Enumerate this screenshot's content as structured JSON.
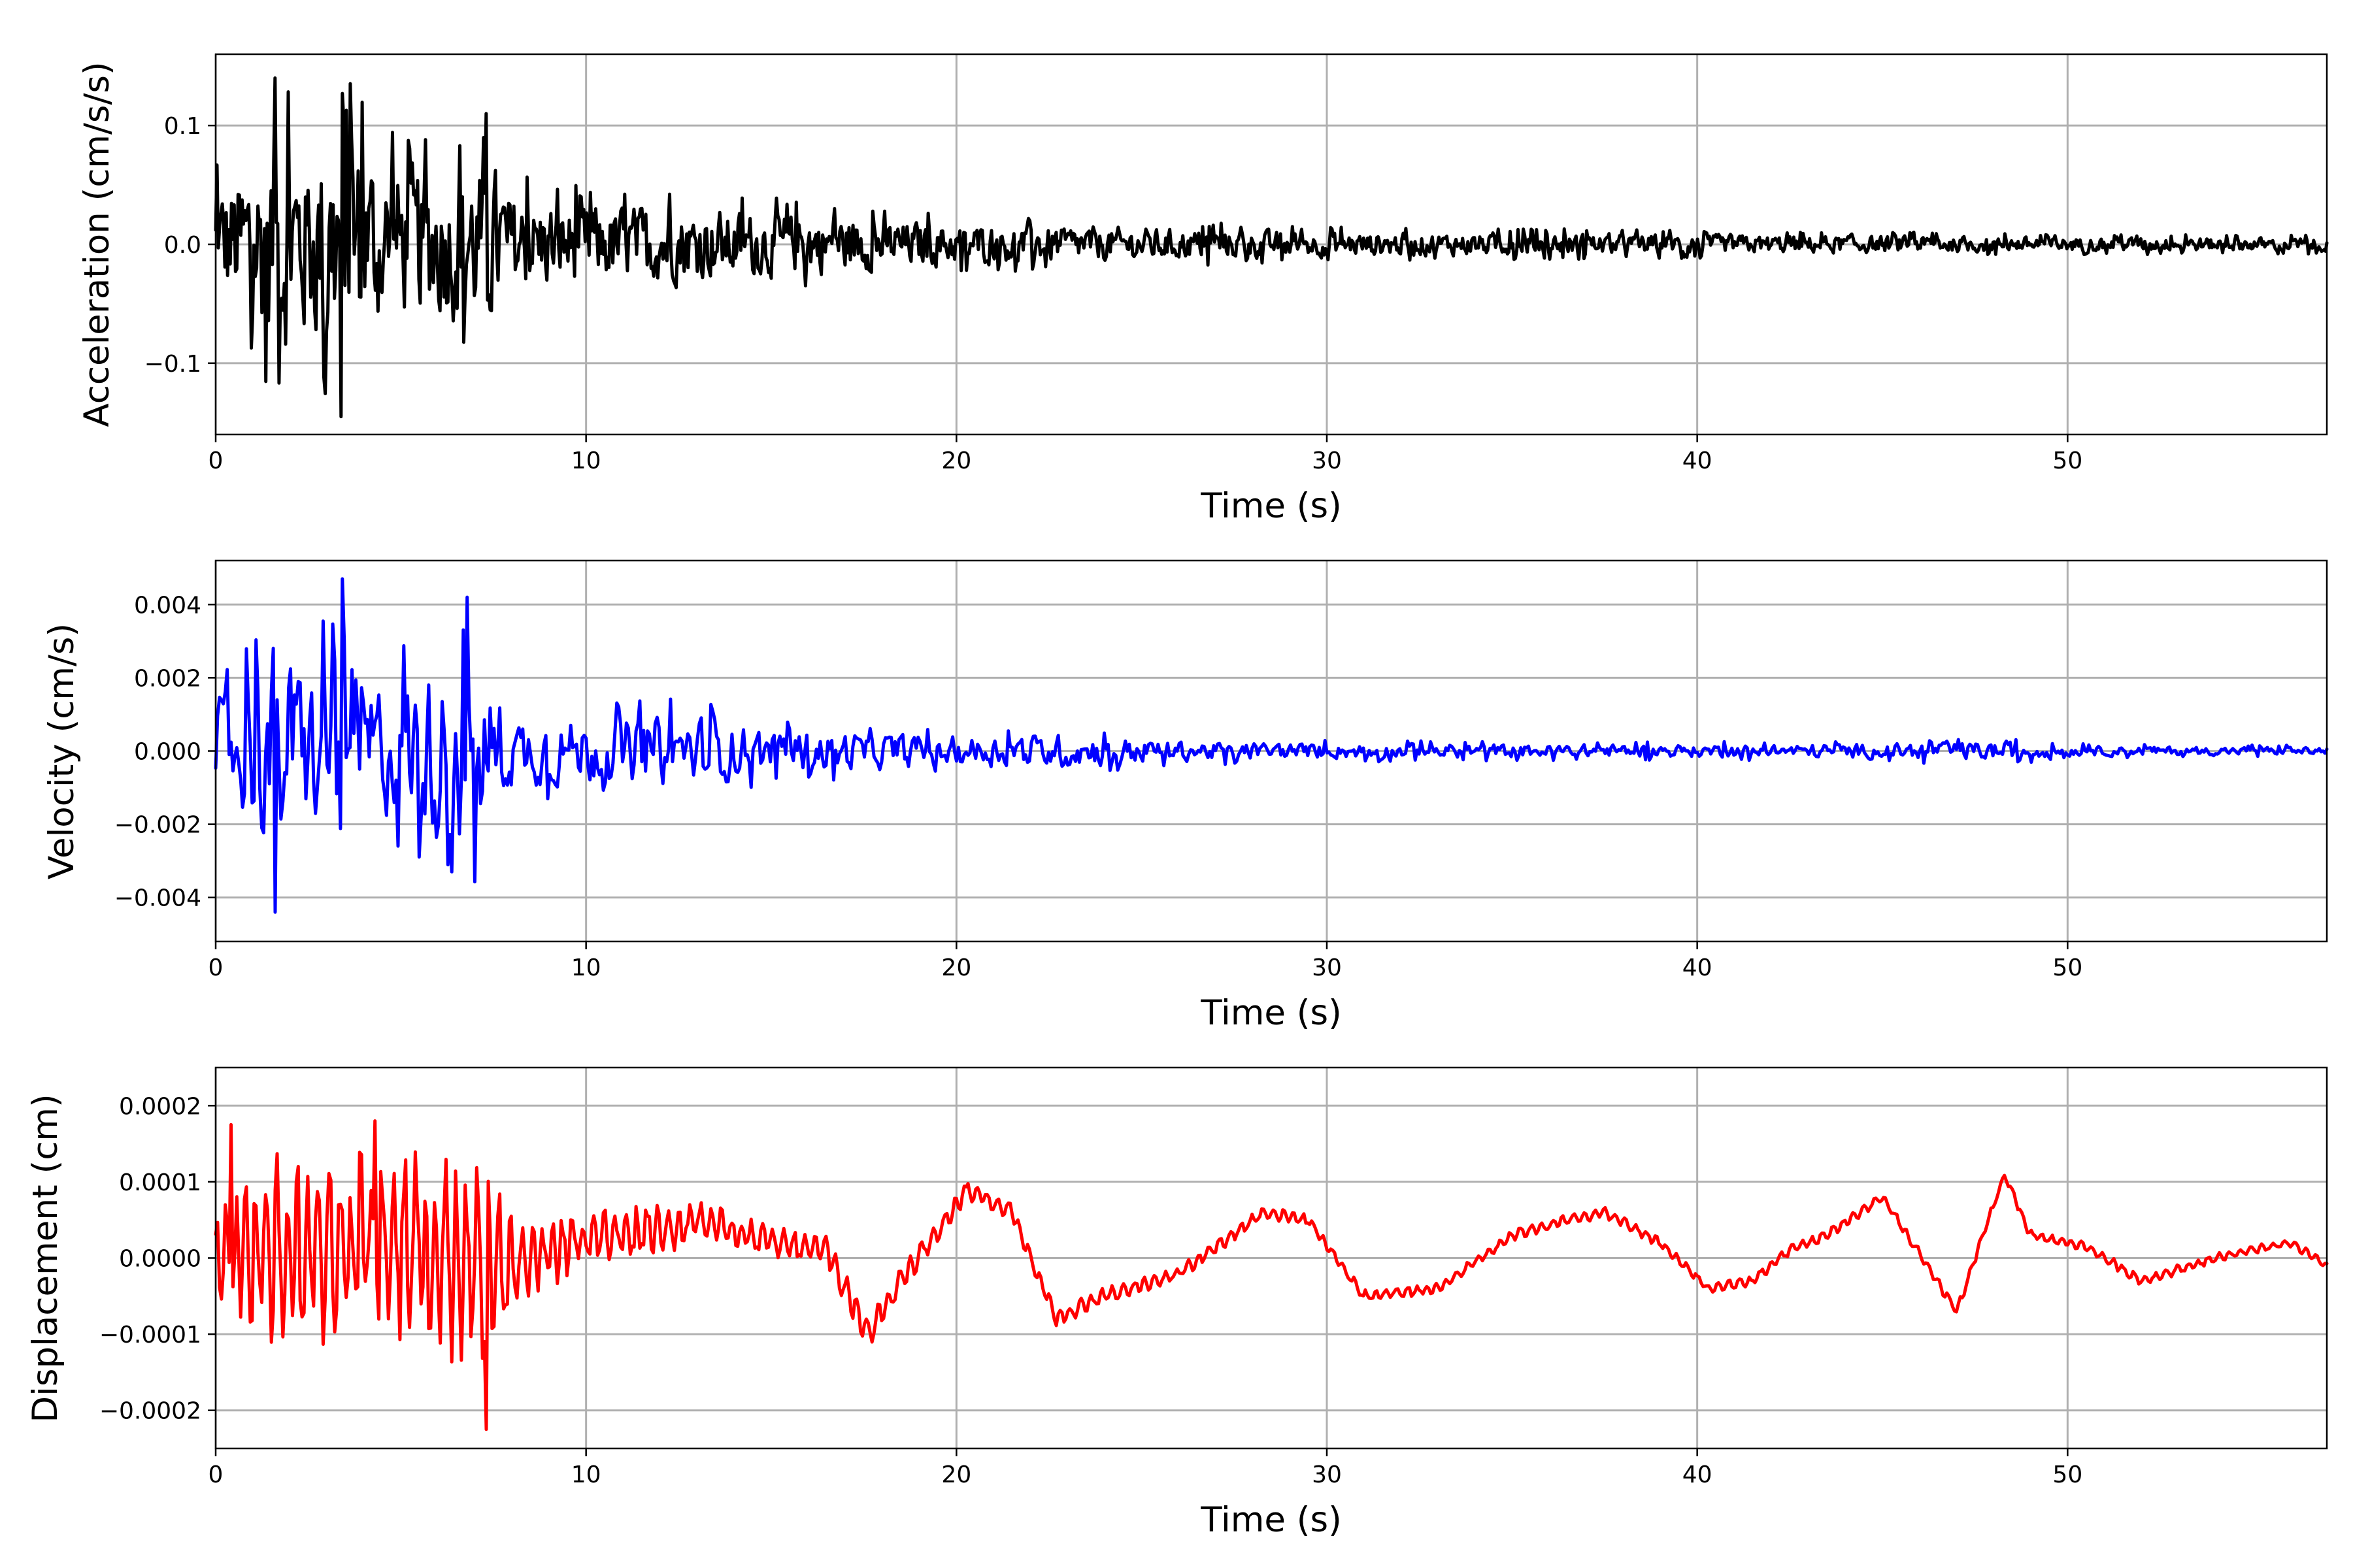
{
  "chart_data": [
    {
      "type": "line",
      "panel": "acceleration",
      "xlabel": "Time (s)",
      "ylabel": "Acceleration (cm/s/s)",
      "xlim": [
        0,
        57
      ],
      "ylim": [
        -0.16,
        0.16
      ],
      "xticks": [
        0,
        10,
        20,
        30,
        40,
        50
      ],
      "xtick_labels": [
        "0",
        "10",
        "20",
        "30",
        "40",
        "50"
      ],
      "yticks": [
        0.1,
        0.0,
        -0.1
      ],
      "ytick_labels": [
        "0.1",
        "0.0",
        "−0.1"
      ],
      "grid": true,
      "color": "#000000",
      "envelope": {
        "time_s": [
          0,
          1,
          1.6,
          2.5,
          3.4,
          4.5,
          6,
          7.3,
          8,
          10,
          13,
          17,
          20,
          25,
          30,
          40,
          50,
          57
        ],
        "amplitude": [
          0.07,
          0.11,
          0.14,
          0.12,
          0.145,
          0.1,
          0.09,
          0.11,
          0.06,
          0.05,
          0.045,
          0.035,
          0.025,
          0.02,
          0.015,
          0.012,
          0.009,
          0.008
        ]
      },
      "peaks": [
        {
          "time_s": 1.6,
          "value": 0.14
        },
        {
          "time_s": 3.4,
          "value": -0.145
        },
        {
          "time_s": 7.3,
          "value": 0.11
        }
      ],
      "trace_points": 1600
    },
    {
      "type": "line",
      "panel": "velocity",
      "xlabel": "Time (s)",
      "ylabel": "Velocity (cm/s)",
      "xlim": [
        0,
        57
      ],
      "ylim": [
        -0.0052,
        0.0052
      ],
      "xticks": [
        0,
        10,
        20,
        30,
        40,
        50
      ],
      "xtick_labels": [
        "0",
        "10",
        "20",
        "30",
        "40",
        "50"
      ],
      "yticks": [
        0.004,
        0.002,
        0.0,
        -0.002,
        -0.004
      ],
      "ytick_labels": [
        "0.004",
        "0.002",
        "0.000",
        "−0.002",
        "−0.004"
      ],
      "grid": true,
      "color": "#0000ff",
      "envelope": {
        "time_s": [
          0,
          1,
          1.6,
          2.5,
          3.4,
          4.5,
          6.4,
          6.8,
          7.3,
          8,
          10,
          12.5,
          15,
          20,
          23,
          26,
          30,
          40,
          45,
          48.3,
          50,
          57
        ],
        "amplitude": [
          0.002,
          0.003,
          0.0044,
          0.003,
          0.0047,
          0.0025,
          0.0038,
          0.0042,
          0.0032,
          0.0014,
          0.0013,
          0.0015,
          0.0009,
          0.0006,
          0.0007,
          0.0004,
          0.0003,
          0.00025,
          0.0003,
          0.0004,
          0.0002,
          0.00015
        ]
      },
      "peaks": [
        {
          "time_s": 1.6,
          "value": -0.0044
        },
        {
          "time_s": 3.4,
          "value": 0.0047
        },
        {
          "time_s": 6.8,
          "value": 0.0042
        }
      ],
      "trace_points": 1100
    },
    {
      "type": "line",
      "panel": "displacement",
      "xlabel": "Time (s)",
      "ylabel": "Displacement (cm)",
      "xlim": [
        0,
        57
      ],
      "ylim": [
        -0.00025,
        0.00025
      ],
      "xticks": [
        0,
        10,
        20,
        30,
        40,
        50
      ],
      "xtick_labels": [
        "0",
        "10",
        "20",
        "30",
        "40",
        "50"
      ],
      "yticks": [
        0.0002,
        0.0001,
        0.0,
        -0.0001,
        -0.0002
      ],
      "ytick_labels": [
        "0.0002",
        "0.0001",
        "0.0000",
        "−0.0001",
        "−0.0002"
      ],
      "grid": true,
      "color": "#ff0000",
      "baseline": {
        "time_s": [
          0,
          2,
          5,
          8,
          9.5,
          11,
          13,
          15,
          16.5,
          17.6,
          18.5,
          20.3,
          21.5,
          22.7,
          24,
          26,
          28.3,
          29.5,
          31,
          33,
          35,
          36.5,
          37.5,
          39,
          40.3,
          41.5,
          42.5,
          43.5,
          45,
          45.8,
          47,
          48.3,
          49,
          50.5,
          52,
          54,
          56,
          57
        ],
        "value": [
          0,
          1e-05,
          2e-05,
          -2e-05,
          2e-05,
          3e-05,
          5e-05,
          2e-05,
          1e-05,
          -0.0001,
          -3e-05,
          9e-05,
          6e-05,
          -8e-05,
          -5e-05,
          -2e-05,
          6e-05,
          5e-05,
          -5e-05,
          -4e-05,
          3e-05,
          5e-05,
          6e-05,
          2e-05,
          -4e-05,
          -3e-05,
          1e-05,
          3e-05,
          8e-05,
          2e-05,
          -7e-05,
          0.00011,
          3e-05,
          1.5e-05,
          -3e-05,
          0,
          2e-05,
          -1e-05
        ]
      },
      "oscillation": {
        "time_s": [
          0,
          1,
          1.6,
          3.4,
          4.3,
          6.5,
          6.8,
          7.3,
          8.2,
          10,
          12.5,
          14,
          17,
          20,
          25,
          30,
          40,
          57
        ],
        "amplitude": [
          0.0001,
          0.00015,
          0.00018,
          0.00016,
          0.00018,
          0.00018,
          0.00016,
          0.0002,
          7e-05,
          5e-05,
          5e-05,
          3e-05,
          3e-05,
          2e-05,
          1.5e-05,
          1e-05,
          1e-05,
          8e-06
        ]
      },
      "peaks": [
        {
          "time_s": 0.4,
          "value": 0.000175
        },
        {
          "time_s": 4.3,
          "value": 0.00018
        },
        {
          "time_s": 7.3,
          "value": -0.000225
        }
      ],
      "trace_points": 1100
    }
  ]
}
